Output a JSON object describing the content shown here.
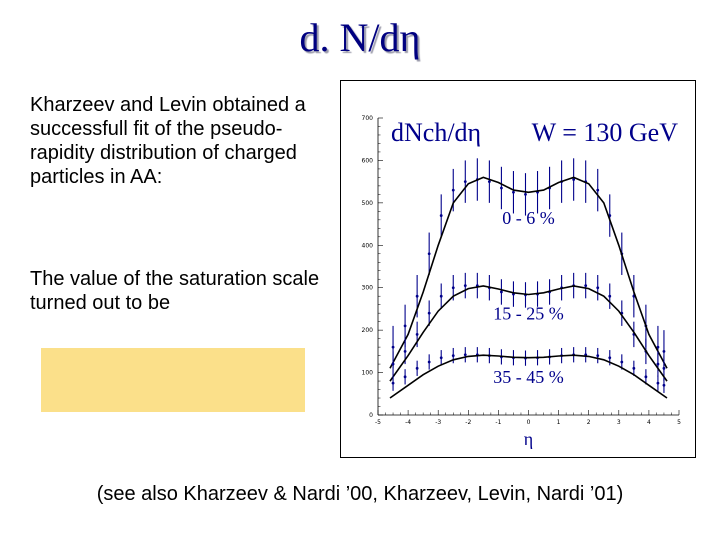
{
  "slide": {
    "title": "d. N/dη",
    "paragraph1": "Kharzeev and Levin obtained a successfull fit of the pseudo-rapidity distribution of charged particles in AA:",
    "paragraph2": "The value of the saturation scale turned out to be",
    "footnote": "(see also Kharzeev & Nardi ’00, Kharzeev, Levin, Nardi ’01)",
    "highlight_color": "#fbe08a",
    "title_color": "#000080"
  },
  "chart_data": {
    "type": "scatter",
    "title_left": "dNch/dη",
    "title_right": "W = 130 GeV",
    "xlabel": "η",
    "ylabel": "",
    "xlim": [
      -5,
      5
    ],
    "ylim": [
      0,
      700
    ],
    "x_ticks": [
      "-5",
      "-4",
      "-3",
      "-2",
      "-1",
      "0",
      "1",
      "2",
      "3",
      "4",
      "5"
    ],
    "y_ticks": [
      "0",
      "100",
      "200",
      "300",
      "400",
      "500",
      "600",
      "700"
    ],
    "x": [
      -4.5,
      -4.1,
      -3.7,
      -3.3,
      -2.9,
      -2.5,
      -2.1,
      -1.7,
      -1.3,
      -0.9,
      -0.5,
      -0.1,
      0.3,
      0.7,
      1.1,
      1.5,
      1.9,
      2.3,
      2.7,
      3.1,
      3.5,
      3.9,
      4.3,
      4.5
    ],
    "series": [
      {
        "name": "0 - 6 %",
        "values": [
          160,
          210,
          280,
          380,
          470,
          530,
          550,
          555,
          550,
          535,
          525,
          520,
          525,
          535,
          550,
          555,
          550,
          530,
          470,
          380,
          280,
          210,
          160,
          150
        ],
        "error": 50,
        "fit": [
          [
            -4.6,
            110
          ],
          [
            -4,
            190
          ],
          [
            -3.5,
            290
          ],
          [
            -3,
            400
          ],
          [
            -2.5,
            500
          ],
          [
            -2,
            545
          ],
          [
            -1.5,
            560
          ],
          [
            -1,
            548
          ],
          [
            -0.5,
            530
          ],
          [
            0,
            525
          ],
          [
            0.5,
            530
          ],
          [
            1,
            548
          ],
          [
            1.5,
            560
          ],
          [
            2,
            545
          ],
          [
            2.5,
            500
          ],
          [
            3,
            400
          ],
          [
            3.5,
            290
          ],
          [
            4,
            190
          ],
          [
            4.6,
            110
          ]
        ]
      },
      {
        "name": "15 - 25 %",
        "values": [
          120,
          150,
          190,
          240,
          280,
          300,
          305,
          305,
          300,
          290,
          285,
          283,
          285,
          290,
          300,
          305,
          305,
          300,
          280,
          240,
          190,
          150,
          120,
          110
        ],
        "error": 30,
        "fit": [
          [
            -4.6,
            80
          ],
          [
            -4,
            140
          ],
          [
            -3.5,
            195
          ],
          [
            -3,
            245
          ],
          [
            -2.5,
            280
          ],
          [
            -2,
            298
          ],
          [
            -1.5,
            304
          ],
          [
            -1,
            297
          ],
          [
            -0.5,
            288
          ],
          [
            0,
            284
          ],
          [
            0.5,
            288
          ],
          [
            1,
            297
          ],
          [
            1.5,
            304
          ],
          [
            2,
            298
          ],
          [
            2.5,
            280
          ],
          [
            3,
            245
          ],
          [
            3.5,
            195
          ],
          [
            4,
            140
          ],
          [
            4.6,
            80
          ]
        ]
      },
      {
        "name": "35 - 45 %",
        "values": [
          75,
          90,
          110,
          125,
          135,
          140,
          142,
          142,
          140,
          137,
          135,
          134,
          135,
          137,
          140,
          142,
          142,
          140,
          135,
          125,
          110,
          90,
          75,
          70
        ],
        "error": 18,
        "fit": [
          [
            -4.6,
            40
          ],
          [
            -4,
            70
          ],
          [
            -3.5,
            95
          ],
          [
            -3,
            115
          ],
          [
            -2.5,
            130
          ],
          [
            -2,
            138
          ],
          [
            -1.5,
            141
          ],
          [
            -1,
            139
          ],
          [
            -0.5,
            136
          ],
          [
            0,
            135
          ],
          [
            0.5,
            136
          ],
          [
            1,
            139
          ],
          [
            1.5,
            141
          ],
          [
            2,
            138
          ],
          [
            2.5,
            130
          ],
          [
            3,
            115
          ],
          [
            3.5,
            95
          ],
          [
            4,
            70
          ],
          [
            4.6,
            40
          ]
        ]
      }
    ],
    "series_label_values": [
      [
        0,
        450
      ],
      [
        0,
        225
      ],
      [
        0,
        75
      ]
    ]
  }
}
